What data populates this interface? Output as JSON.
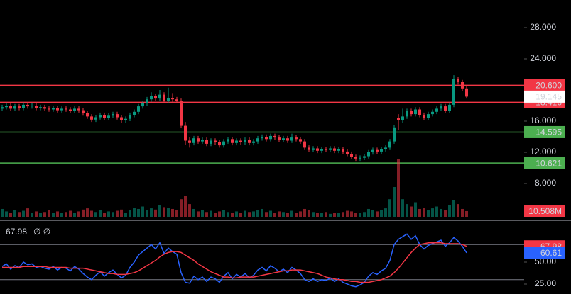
{
  "chart_data": [
    {
      "type": "candlestick",
      "ylim": [
        3.364,
        31.545
      ],
      "yticks": [
        {
          "value": 28,
          "label": "28.000"
        },
        {
          "value": 24,
          "label": "24.000"
        },
        {
          "value": 16,
          "label": "16.000"
        },
        {
          "value": 12,
          "label": "12.000"
        },
        {
          "value": 8,
          "label": "8.000"
        }
      ],
      "up_color": "#089981",
      "down_color": "#f23645",
      "candles": [
        [
          17.6,
          18.1,
          17.3,
          17.8
        ],
        [
          17.8,
          18.3,
          17.5,
          18.0
        ],
        [
          18.0,
          18.3,
          17.3,
          17.6
        ],
        [
          17.6,
          18.2,
          17.3,
          17.9
        ],
        [
          17.9,
          18.2,
          17.4,
          17.7
        ],
        [
          17.7,
          18.4,
          17.4,
          18.1
        ],
        [
          18.1,
          18.4,
          17.6,
          17.9
        ],
        [
          17.9,
          18.3,
          17.6,
          18.0
        ],
        [
          18.0,
          18.3,
          17.4,
          17.7
        ],
        [
          17.7,
          18.1,
          17.4,
          17.8
        ],
        [
          17.8,
          18.1,
          17.3,
          17.6
        ],
        [
          17.6,
          17.9,
          17.2,
          17.5
        ],
        [
          17.5,
          18.0,
          17.2,
          17.7
        ],
        [
          17.7,
          18.0,
          17.1,
          17.4
        ],
        [
          17.4,
          17.9,
          17.1,
          17.6
        ],
        [
          17.6,
          17.9,
          17.2,
          17.5
        ],
        [
          17.5,
          17.8,
          17.0,
          17.3
        ],
        [
          17.3,
          17.9,
          17.0,
          17.6
        ],
        [
          17.6,
          17.9,
          17.1,
          17.4
        ],
        [
          17.4,
          17.7,
          16.7,
          17.0
        ],
        [
          17.0,
          17.3,
          16.3,
          16.6
        ],
        [
          16.6,
          16.9,
          15.9,
          16.2
        ],
        [
          16.2,
          16.8,
          15.9,
          16.5
        ],
        [
          16.5,
          17.1,
          16.2,
          16.8
        ],
        [
          16.8,
          17.1,
          16.1,
          16.4
        ],
        [
          16.4,
          17.0,
          16.1,
          16.7
        ],
        [
          16.7,
          17.2,
          16.4,
          16.9
        ],
        [
          16.9,
          17.2,
          16.2,
          16.5
        ],
        [
          16.5,
          16.8,
          15.8,
          16.1
        ],
        [
          16.1,
          16.6,
          15.8,
          16.3
        ],
        [
          16.3,
          17.1,
          16.0,
          16.8
        ],
        [
          16.8,
          17.5,
          16.5,
          17.2
        ],
        [
          17.2,
          18.2,
          16.9,
          17.9
        ],
        [
          17.9,
          18.6,
          17.6,
          18.3
        ],
        [
          18.3,
          19.1,
          18.0,
          18.8
        ],
        [
          18.8,
          19.7,
          18.5,
          19.2
        ],
        [
          19.2,
          19.5,
          18.6,
          18.9
        ],
        [
          18.9,
          20.0,
          18.6,
          19.4
        ],
        [
          19.4,
          19.7,
          18.3,
          18.6
        ],
        [
          18.6,
          20.3,
          18.3,
          19.0
        ],
        [
          19.0,
          19.6,
          18.5,
          18.8
        ],
        [
          18.8,
          19.1,
          18.3,
          18.6
        ],
        [
          18.6,
          18.9,
          15.1,
          15.4
        ],
        [
          15.4,
          15.9,
          13.0,
          13.5
        ],
        [
          13.5,
          14.0,
          12.6,
          13.2
        ],
        [
          13.2,
          14.1,
          12.9,
          13.8
        ],
        [
          13.8,
          14.1,
          13.1,
          13.4
        ],
        [
          13.4,
          13.9,
          13.1,
          13.6
        ],
        [
          13.6,
          13.9,
          12.8,
          13.1
        ],
        [
          13.1,
          13.8,
          12.8,
          13.5
        ],
        [
          13.5,
          13.8,
          13.0,
          13.3
        ],
        [
          13.3,
          13.6,
          12.6,
          12.9
        ],
        [
          12.9,
          13.7,
          12.6,
          13.4
        ],
        [
          13.4,
          14.0,
          13.1,
          13.7
        ],
        [
          13.7,
          14.0,
          12.9,
          13.2
        ],
        [
          13.2,
          13.8,
          12.9,
          13.5
        ],
        [
          13.5,
          13.8,
          13.0,
          13.3
        ],
        [
          13.3,
          13.9,
          13.0,
          13.6
        ],
        [
          13.6,
          13.9,
          12.9,
          13.2
        ],
        [
          13.2,
          13.7,
          12.9,
          13.4
        ],
        [
          13.4,
          14.1,
          13.1,
          13.8
        ],
        [
          13.8,
          14.3,
          13.5,
          14.0
        ],
        [
          14.0,
          14.3,
          13.4,
          13.7
        ],
        [
          13.7,
          14.4,
          13.4,
          14.1
        ],
        [
          14.1,
          14.4,
          13.6,
          13.9
        ],
        [
          13.9,
          14.2,
          13.3,
          13.6
        ],
        [
          13.6,
          14.1,
          13.3,
          13.8
        ],
        [
          13.8,
          14.1,
          13.2,
          13.5
        ],
        [
          13.5,
          14.4,
          13.2,
          13.9
        ],
        [
          13.9,
          14.2,
          13.4,
          13.7
        ],
        [
          13.7,
          14.0,
          13.1,
          13.4
        ],
        [
          13.4,
          13.7,
          12.3,
          12.6
        ],
        [
          12.6,
          12.9,
          12.0,
          12.3
        ],
        [
          12.3,
          12.8,
          12.0,
          12.5
        ],
        [
          12.5,
          12.8,
          11.9,
          12.2
        ],
        [
          12.2,
          12.7,
          11.9,
          12.4
        ],
        [
          12.4,
          12.7,
          12.0,
          12.3
        ],
        [
          12.3,
          12.8,
          12.0,
          12.5
        ],
        [
          12.5,
          12.8,
          11.9,
          12.2
        ],
        [
          12.2,
          12.7,
          11.9,
          12.4
        ],
        [
          12.4,
          12.7,
          11.8,
          12.1
        ],
        [
          12.1,
          12.4,
          11.5,
          11.8
        ],
        [
          11.8,
          12.1,
          11.1,
          11.4
        ],
        [
          11.4,
          11.7,
          10.9,
          11.2
        ],
        [
          11.2,
          11.6,
          10.9,
          11.3
        ],
        [
          11.3,
          11.8,
          11.0,
          11.5
        ],
        [
          11.5,
          12.3,
          11.2,
          12.0
        ],
        [
          12.0,
          12.6,
          11.7,
          12.3
        ],
        [
          12.3,
          12.6,
          11.8,
          12.1
        ],
        [
          12.1,
          12.7,
          11.8,
          12.4
        ],
        [
          12.4,
          12.9,
          12.1,
          12.6
        ],
        [
          12.6,
          13.7,
          12.3,
          13.4
        ],
        [
          13.4,
          15.5,
          13.1,
          15.2
        ],
        [
          16.4,
          16.9,
          14.9,
          16.1
        ],
        [
          16.1,
          17.6,
          15.8,
          16.6
        ],
        [
          16.6,
          17.6,
          16.3,
          17.3
        ],
        [
          17.3,
          17.6,
          16.6,
          16.9
        ],
        [
          16.9,
          17.8,
          16.6,
          17.5
        ],
        [
          17.5,
          17.8,
          16.5,
          16.8
        ],
        [
          16.8,
          17.1,
          16.1,
          16.4
        ],
        [
          16.4,
          17.2,
          16.1,
          16.9
        ],
        [
          16.9,
          17.5,
          16.6,
          17.2
        ],
        [
          17.2,
          17.9,
          16.9,
          17.6
        ],
        [
          17.6,
          18.2,
          17.3,
          17.9
        ],
        [
          17.9,
          18.2,
          17.0,
          17.3
        ],
        [
          17.3,
          18.4,
          17.0,
          18.1
        ],
        [
          18.1,
          21.9,
          17.8,
          21.4
        ],
        [
          21.4,
          21.7,
          20.7,
          21.0
        ],
        [
          21.0,
          21.3,
          19.9,
          20.2
        ],
        [
          20.2,
          20.5,
          18.9,
          19.145
        ]
      ],
      "volume": {
        "ylim": [
          0,
          357
        ],
        "values": [
          14,
          10,
          8,
          12,
          9,
          11,
          15,
          8,
          10,
          7,
          9,
          12,
          8,
          10,
          7,
          9,
          11,
          8,
          10,
          13,
          15,
          11,
          9,
          12,
          8,
          10,
          9,
          11,
          13,
          8,
          12,
          16,
          14,
          18,
          12,
          15,
          13,
          20,
          17,
          16,
          14,
          12,
          30,
          36,
          22,
          14,
          10,
          12,
          9,
          11,
          8,
          10,
          12,
          9,
          7,
          10,
          8,
          11,
          9,
          10,
          12,
          14,
          9,
          11,
          8,
          10,
          9,
          7,
          11,
          8,
          10,
          14,
          12,
          9,
          8,
          7,
          9,
          6,
          8,
          7,
          9,
          11,
          10,
          8,
          7,
          9,
          14,
          12,
          10,
          12,
          15,
          30,
          50,
          96,
          30,
          22,
          18,
          25,
          14,
          16,
          12,
          15,
          18,
          14,
          12,
          20,
          28,
          22,
          14,
          10.508
        ],
        "last_label": "10.508M"
      },
      "price_lines": [
        {
          "value": 20.6,
          "label": "20.600",
          "color": "#f23645"
        },
        {
          "value": 18.416,
          "label": "18.416",
          "color": "#f23645"
        },
        {
          "value": 14.595,
          "label": "14.595",
          "color": "#4caf50"
        },
        {
          "value": 10.621,
          "label": "10.621",
          "color": "#4caf50"
        }
      ]
    },
    {
      "type": "line",
      "ylim": [
        13.7,
        96.8
      ],
      "yticks": [
        {
          "value": 50,
          "label": "50.00"
        },
        {
          "value": 25,
          "label": "25.00"
        }
      ],
      "levels": [
        70,
        30
      ],
      "level_color": "#787b86",
      "legend_suffix": "∅ ∅",
      "series": [
        {
          "color": "#2962ff",
          "values": [
            45,
            48,
            42,
            46,
            44,
            50,
            47,
            48,
            44,
            45,
            43,
            42,
            45,
            41,
            44,
            43,
            40,
            45,
            42,
            37,
            33,
            30,
            35,
            39,
            34,
            38,
            41,
            36,
            32,
            35,
            44,
            50,
            58,
            62,
            66,
            70,
            65,
            72,
            60,
            66,
            62,
            59,
            38,
            27,
            26,
            34,
            30,
            33,
            28,
            33,
            31,
            27,
            34,
            38,
            31,
            36,
            33,
            37,
            32,
            35,
            41,
            44,
            40,
            46,
            43,
            39,
            42,
            38,
            44,
            41,
            37,
            30,
            28,
            31,
            28,
            30,
            29,
            32,
            28,
            31,
            27,
            25,
            23,
            22,
            24,
            27,
            34,
            38,
            36,
            40,
            43,
            52,
            70,
            76,
            79,
            82,
            76,
            80,
            70,
            65,
            69,
            71,
            73,
            75,
            68,
            72,
            78,
            74,
            68,
            60.61
          ]
        },
        {
          "color": "#f23645",
          "values": [
            44,
            44,
            44,
            44,
            44,
            45,
            45,
            45,
            45,
            45,
            45,
            44,
            44,
            44,
            44,
            44,
            43,
            43,
            43,
            43,
            42,
            41,
            40,
            39,
            38,
            37,
            37,
            36,
            36,
            36,
            37,
            38,
            40,
            43,
            46,
            49,
            52,
            56,
            59,
            61,
            62,
            62,
            61,
            58,
            55,
            52,
            48,
            45,
            42,
            39,
            37,
            35,
            33,
            33,
            32,
            32,
            33,
            33,
            33,
            33,
            34,
            35,
            36,
            37,
            38,
            39,
            40,
            40,
            41,
            41,
            41,
            40,
            39,
            38,
            37,
            35,
            33,
            32,
            31,
            30,
            30,
            29,
            28,
            28,
            27,
            27,
            27,
            28,
            29,
            30,
            32,
            34,
            38,
            43,
            49,
            55,
            61,
            66,
            70,
            71,
            72,
            72,
            72,
            72,
            71,
            71,
            71,
            71,
            70,
            67.98
          ]
        }
      ]
    }
  ]
}
